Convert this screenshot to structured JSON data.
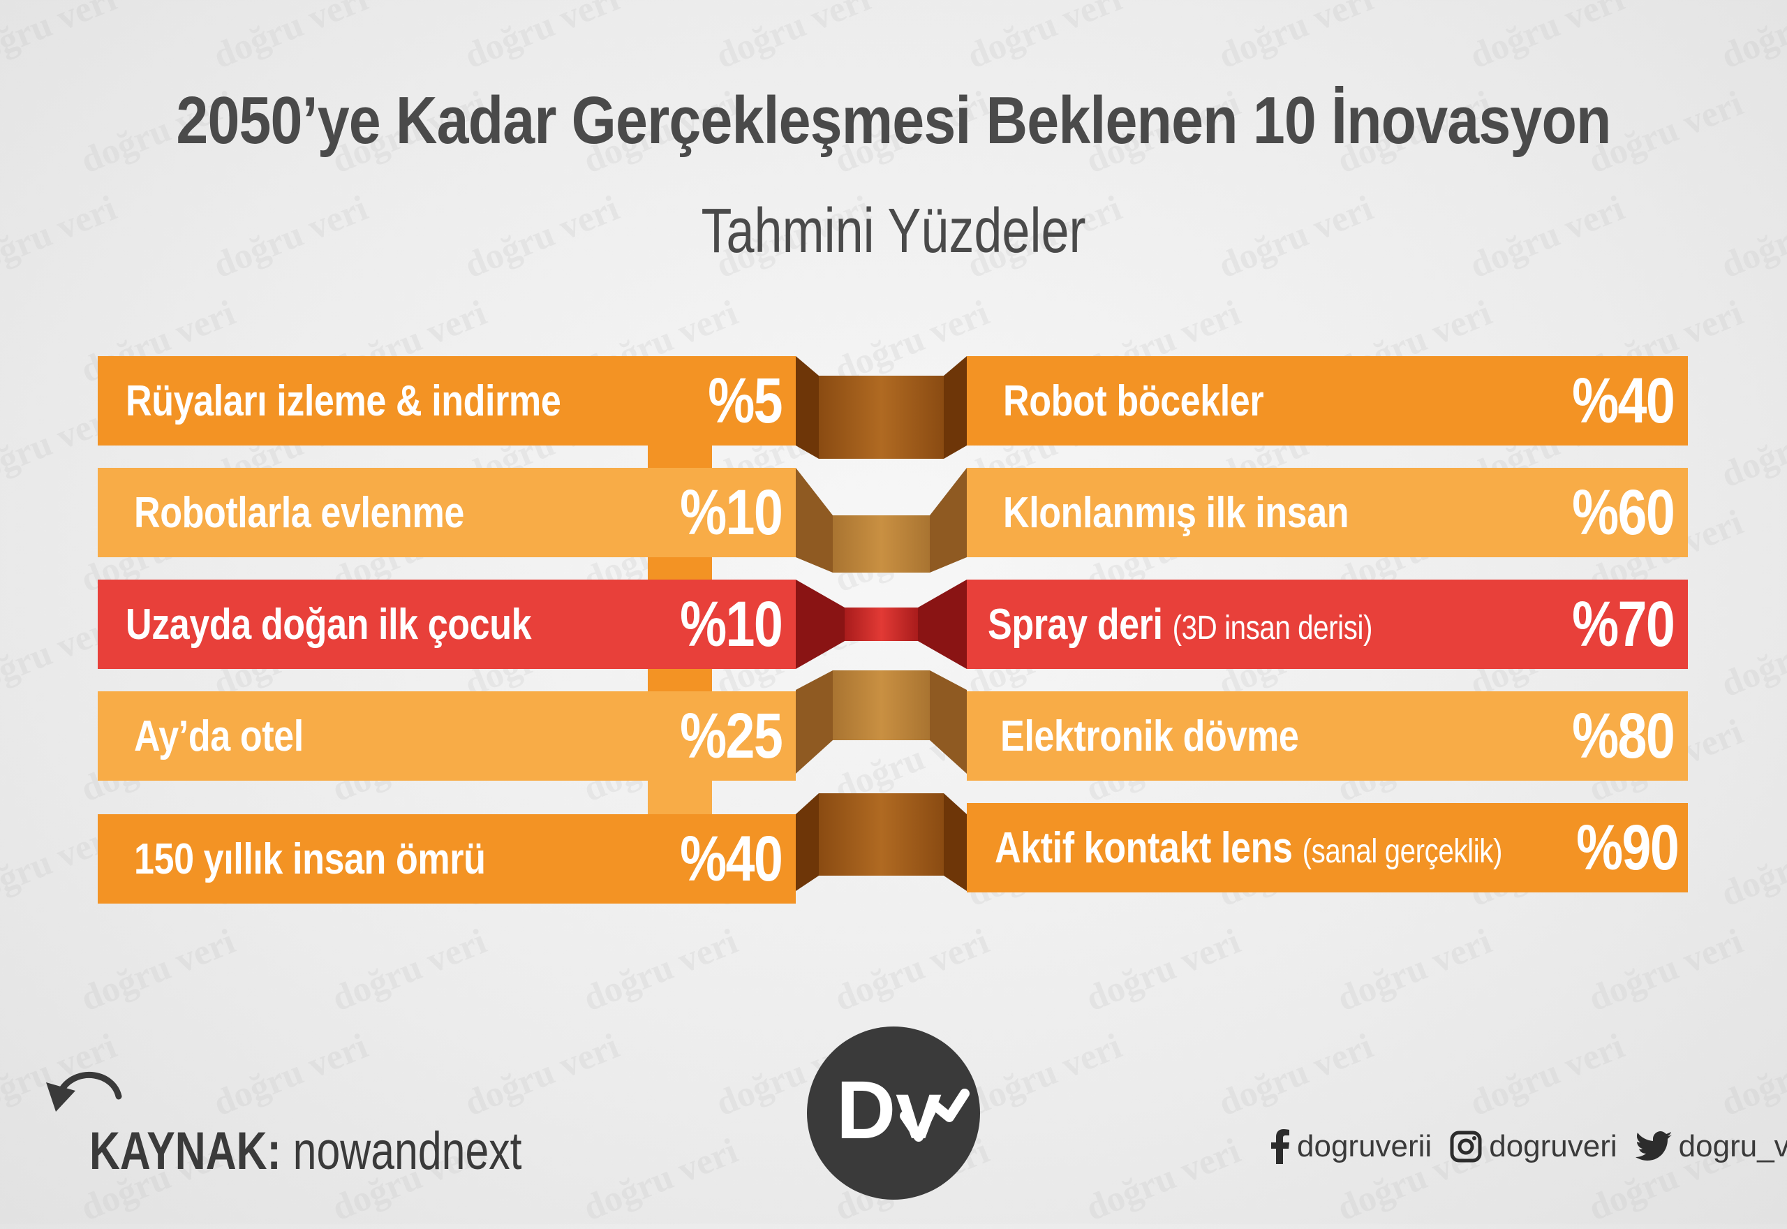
{
  "title": "2050’ye Kadar Gerçekleşmesi Beklenen 10 İnovasyon",
  "subtitle": "Tahmini Yüzdeler",
  "watermark_text": "doğru veri",
  "left_items": [
    {
      "label": "Rüyaları izleme & indirme",
      "percent": "%5"
    },
    {
      "label": "Robotlarla evlenme",
      "percent": "%10"
    },
    {
      "label": "Uzayda doğan ilk çocuk",
      "percent": "%10"
    },
    {
      "label": "Ay’da otel",
      "percent": "%25"
    },
    {
      "label": "150 yıllık insan ömrü",
      "percent": "%40"
    }
  ],
  "right_items": [
    {
      "label": "Robot böcekler",
      "note": "",
      "percent": "%40"
    },
    {
      "label": "Klonlanmış ilk insan",
      "note": "",
      "percent": "%60"
    },
    {
      "label": "Spray deri",
      "note": "(3D insan derisi)",
      "percent": "%70"
    },
    {
      "label": "Elektronik dövme",
      "note": "",
      "percent": "%80"
    },
    {
      "label": "Aktif kontakt lens",
      "note": "(sanal gerçeklik)",
      "percent": "%90"
    }
  ],
  "source": {
    "label": "KAYNAK:",
    "value": "nowandnext"
  },
  "logo_text": "Dv",
  "socials": {
    "facebook": "dogruverii",
    "instagram": "dogruveri",
    "twitter": "dogru_veri"
  },
  "icons": [
    "back-arrow-icon",
    "facebook-icon",
    "instagram-icon",
    "twitter-icon"
  ],
  "colors": {
    "orange": "#f39324",
    "light_orange": "#f8ac47",
    "red": "#e8403a",
    "dark_text": "#4a4a4a",
    "logo_bg": "#3a3a3a"
  }
}
